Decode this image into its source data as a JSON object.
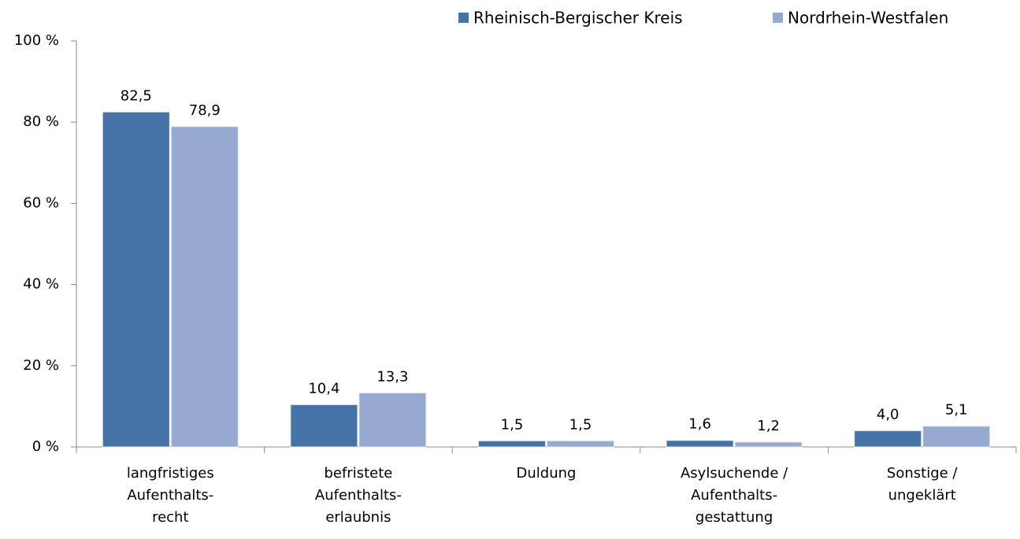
{
  "chart_data": {
    "type": "bar",
    "categories": [
      "langfristiges\nAufenthalts-\nrecht",
      "befristete\nAufenthalts-\nerlaubnis",
      "Duldung",
      "Asylsuchende /\nAufenthalts-\ngestattung",
      "Sonstige /\nungeklärt"
    ],
    "series": [
      {
        "name": "Rheinisch-Bergischer Kreis",
        "color": "#4572a7",
        "values": [
          82.5,
          10.4,
          1.5,
          1.6,
          4.0
        ],
        "value_labels": [
          "82,5",
          "10,4",
          "1,5",
          "1,6",
          "4,0"
        ]
      },
      {
        "name": "Nordrhein-Westfalen",
        "color": "#95a9d1",
        "values": [
          78.9,
          13.3,
          1.5,
          1.2,
          5.1
        ],
        "value_labels": [
          "78,9",
          "13,3",
          "1,5",
          "1,2",
          "5,1"
        ]
      }
    ],
    "ylim": [
      0,
      100
    ],
    "yticks": [
      {
        "value": 0,
        "label": "0 %"
      },
      {
        "value": 20,
        "label": "20 %"
      },
      {
        "value": 40,
        "label": "40 %"
      },
      {
        "value": 60,
        "label": "60 %"
      },
      {
        "value": 80,
        "label": "80 %"
      },
      {
        "value": 100,
        "label": "100 %"
      }
    ],
    "legend": "top-right"
  }
}
